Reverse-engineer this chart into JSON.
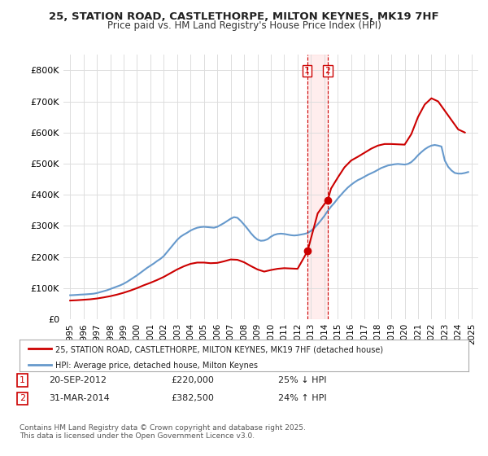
{
  "title": "25, STATION ROAD, CASTLETHORPE, MILTON KEYNES, MK19 7HF",
  "subtitle": "Price paid vs. HM Land Registry's House Price Index (HPI)",
  "property_label": "25, STATION ROAD, CASTLETHORPE, MILTON KEYNES, MK19 7HF (detached house)",
  "hpi_label": "HPI: Average price, detached house, Milton Keynes",
  "footnote": "Contains HM Land Registry data © Crown copyright and database right 2025.\nThis data is licensed under the Open Government Licence v3.0.",
  "transaction1": {
    "num": "1",
    "date": "20-SEP-2012",
    "price": "£220,000",
    "pct": "25% ↓ HPI"
  },
  "transaction2": {
    "num": "2",
    "date": "31-MAR-2014",
    "price": "£382,500",
    "pct": "24% ↑ HPI"
  },
  "vline1_x": 2012.72,
  "vline2_x": 2014.25,
  "dot1_x": 2012.72,
  "dot1_y": 220000,
  "dot2_x": 2014.25,
  "dot2_y": 382500,
  "property_color": "#cc0000",
  "hpi_color": "#6699cc",
  "background_color": "#ffffff",
  "plot_bg_color": "#ffffff",
  "ylim": [
    0,
    850000
  ],
  "xlim": [
    1994.5,
    2025.5
  ],
  "yticks": [
    0,
    100000,
    200000,
    300000,
    400000,
    500000,
    600000,
    700000,
    800000
  ],
  "ytick_labels": [
    "£0",
    "£100K",
    "£200K",
    "£300K",
    "£400K",
    "£500K",
    "£600K",
    "£700K",
    "£800K"
  ],
  "xticks": [
    1995,
    1996,
    1997,
    1998,
    1999,
    2000,
    2001,
    2002,
    2003,
    2004,
    2005,
    2006,
    2007,
    2008,
    2009,
    2010,
    2011,
    2012,
    2013,
    2014,
    2015,
    2016,
    2017,
    2018,
    2019,
    2020,
    2021,
    2022,
    2023,
    2024,
    2025
  ],
  "hpi_years": [
    1995.0,
    1995.25,
    1995.5,
    1995.75,
    1996.0,
    1996.25,
    1996.5,
    1996.75,
    1997.0,
    1997.25,
    1997.5,
    1997.75,
    1998.0,
    1998.25,
    1998.5,
    1998.75,
    1999.0,
    1999.25,
    1999.5,
    1999.75,
    2000.0,
    2000.25,
    2000.5,
    2000.75,
    2001.0,
    2001.25,
    2001.5,
    2001.75,
    2002.0,
    2002.25,
    2002.5,
    2002.75,
    2003.0,
    2003.25,
    2003.5,
    2003.75,
    2004.0,
    2004.25,
    2004.5,
    2004.75,
    2005.0,
    2005.25,
    2005.5,
    2005.75,
    2006.0,
    2006.25,
    2006.5,
    2006.75,
    2007.0,
    2007.25,
    2007.5,
    2007.75,
    2008.0,
    2008.25,
    2008.5,
    2008.75,
    2009.0,
    2009.25,
    2009.5,
    2009.75,
    2010.0,
    2010.25,
    2010.5,
    2010.75,
    2011.0,
    2011.25,
    2011.5,
    2011.75,
    2012.0,
    2012.25,
    2012.5,
    2012.75,
    2013.0,
    2013.25,
    2013.5,
    2013.75,
    2014.0,
    2014.25,
    2014.5,
    2014.75,
    2015.0,
    2015.25,
    2015.5,
    2015.75,
    2016.0,
    2016.25,
    2016.5,
    2016.75,
    2017.0,
    2017.25,
    2017.5,
    2017.75,
    2018.0,
    2018.25,
    2018.5,
    2018.75,
    2019.0,
    2019.25,
    2019.5,
    2019.75,
    2020.0,
    2020.25,
    2020.5,
    2020.75,
    2021.0,
    2021.25,
    2021.5,
    2021.75,
    2022.0,
    2022.25,
    2022.5,
    2022.75,
    2023.0,
    2023.25,
    2023.5,
    2023.75,
    2024.0,
    2024.25,
    2024.5,
    2024.75
  ],
  "hpi_values": [
    77000,
    77500,
    78200,
    79000,
    79500,
    80200,
    81000,
    82000,
    84000,
    87000,
    90000,
    93000,
    97000,
    101000,
    105000,
    109000,
    114000,
    120000,
    127000,
    134000,
    141000,
    149000,
    157000,
    165000,
    172000,
    179000,
    187000,
    194000,
    203000,
    216000,
    229000,
    242000,
    255000,
    265000,
    272000,
    278000,
    285000,
    290000,
    294000,
    296000,
    297000,
    296000,
    295000,
    294000,
    297000,
    303000,
    309000,
    316000,
    323000,
    328000,
    326000,
    316000,
    304000,
    291000,
    277000,
    265000,
    256000,
    252000,
    253000,
    257000,
    265000,
    271000,
    274000,
    275000,
    274000,
    272000,
    270000,
    269000,
    270000,
    272000,
    274000,
    277000,
    284000,
    293000,
    305000,
    318000,
    332000,
    348000,
    362000,
    374000,
    388000,
    400000,
    412000,
    423000,
    432000,
    440000,
    447000,
    452000,
    458000,
    464000,
    469000,
    474000,
    480000,
    486000,
    490000,
    494000,
    496000,
    498000,
    499000,
    498000,
    497000,
    499000,
    505000,
    515000,
    527000,
    537000,
    546000,
    553000,
    558000,
    560000,
    558000,
    555000,
    510000,
    490000,
    478000,
    470000,
    468000,
    468000,
    470000,
    473000
  ],
  "property_years": [
    1995.0,
    1995.5,
    1996.0,
    1996.5,
    1997.0,
    1997.5,
    1998.0,
    1998.5,
    1999.0,
    1999.5,
    2000.0,
    2000.5,
    2001.0,
    2001.5,
    2002.0,
    2002.5,
    2003.0,
    2003.5,
    2004.0,
    2004.5,
    2005.0,
    2005.5,
    2006.0,
    2006.5,
    2007.0,
    2007.5,
    2008.0,
    2008.5,
    2009.0,
    2009.5,
    2010.0,
    2010.5,
    2011.0,
    2011.5,
    2012.0,
    2012.5,
    2012.75,
    2013.0,
    2013.5,
    2014.0,
    2014.25,
    2014.5,
    2015.0,
    2015.5,
    2016.0,
    2016.5,
    2017.0,
    2017.5,
    2018.0,
    2018.5,
    2019.0,
    2019.5,
    2020.0,
    2020.5,
    2021.0,
    2021.5,
    2022.0,
    2022.5,
    2023.0,
    2023.5,
    2024.0,
    2024.5
  ],
  "property_values": [
    60000,
    61000,
    62500,
    64000,
    66500,
    70000,
    74000,
    79000,
    85000,
    92000,
    100000,
    109000,
    117000,
    126000,
    136000,
    148000,
    160000,
    170000,
    178000,
    182000,
    182000,
    180000,
    181000,
    186000,
    192000,
    191000,
    183000,
    171000,
    160000,
    153000,
    158000,
    162000,
    164000,
    163000,
    162000,
    200000,
    220000,
    260000,
    340000,
    370000,
    382500,
    420000,
    455000,
    488000,
    510000,
    522000,
    535000,
    548000,
    558000,
    563000,
    563000,
    562000,
    561000,
    595000,
    650000,
    690000,
    710000,
    700000,
    670000,
    640000,
    610000,
    600000
  ]
}
